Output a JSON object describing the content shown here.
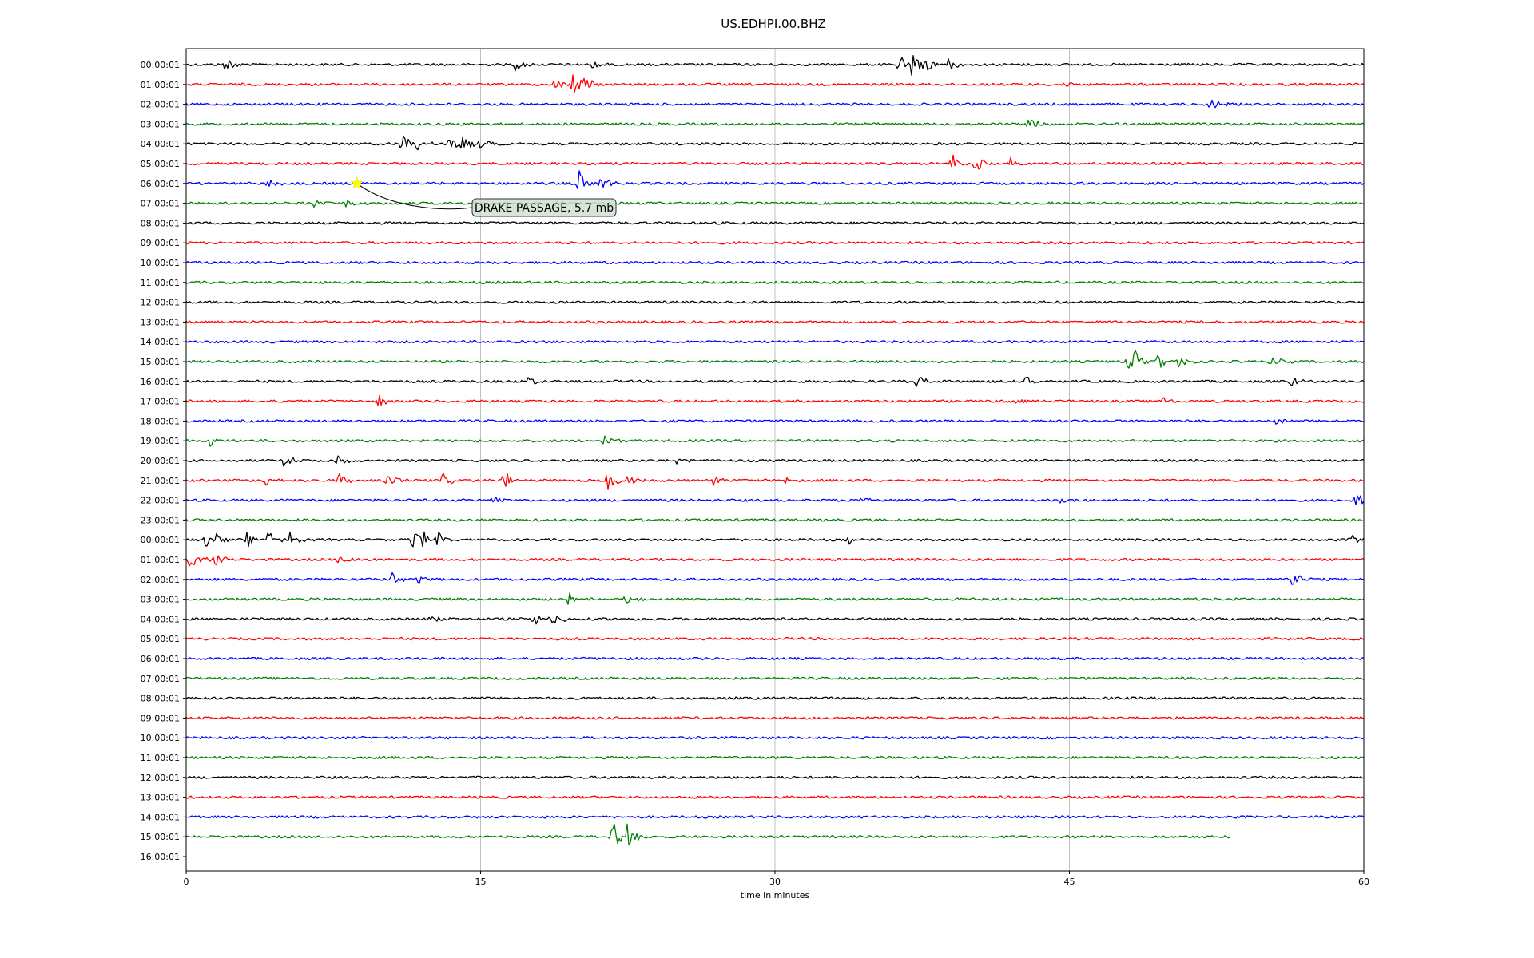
{
  "chart_data": {
    "type": "line",
    "title": "US.EDHPI.00.BHZ",
    "xlabel": "time in minutes",
    "ylabel": "",
    "xlim": [
      0,
      60
    ],
    "x_ticks": [
      "0",
      "15",
      "30",
      "45",
      "60"
    ],
    "x_tick_values": [
      0,
      15,
      30,
      45,
      60
    ],
    "grid": true,
    "colors": [
      "#000000",
      "#ff0000",
      "#0000ff",
      "#008000"
    ],
    "row_labels": [
      "00:00:01",
      "01:00:01",
      "02:00:01",
      "03:00:01",
      "04:00:01",
      "05:00:01",
      "06:00:01",
      "07:00:01",
      "08:00:01",
      "09:00:01",
      "10:00:01",
      "11:00:01",
      "12:00:01",
      "13:00:01",
      "14:00:01",
      "15:00:01",
      "16:00:01",
      "17:00:01",
      "18:00:01",
      "19:00:01",
      "20:00:01",
      "21:00:01",
      "22:00:01",
      "23:00:01",
      "00:00:01",
      "01:00:01",
      "02:00:01",
      "03:00:01",
      "04:00:01",
      "05:00:01",
      "06:00:01",
      "07:00:01",
      "08:00:01",
      "09:00:01",
      "10:00:01",
      "11:00:01",
      "12:00:01",
      "13:00:01",
      "14:00:01",
      "15:00:01",
      "16:00:01"
    ],
    "traces_drawn": 40,
    "last_trace_end_minute": 53.2,
    "events": [
      {
        "row": 0,
        "minute": 2.0,
        "amp": 0.45
      },
      {
        "row": 0,
        "minute": 16.8,
        "amp": 0.4
      },
      {
        "row": 0,
        "minute": 20.6,
        "amp": 0.3
      },
      {
        "row": 0,
        "minute": 36.3,
        "amp": 0.7
      },
      {
        "row": 0,
        "minute": 37.0,
        "amp": 0.9
      },
      {
        "row": 0,
        "minute": 37.6,
        "amp": 0.6
      },
      {
        "row": 0,
        "minute": 38.8,
        "amp": 0.4
      },
      {
        "row": 1,
        "minute": 18.8,
        "amp": 0.4
      },
      {
        "row": 1,
        "minute": 19.7,
        "amp": 0.8
      },
      {
        "row": 1,
        "minute": 20.2,
        "amp": 0.5
      },
      {
        "row": 1,
        "minute": 44.5,
        "amp": 0.25
      },
      {
        "row": 2,
        "minute": 52.2,
        "amp": 0.55
      },
      {
        "row": 3,
        "minute": 42.9,
        "amp": 0.9
      },
      {
        "row": 4,
        "minute": 11.0,
        "amp": 0.8
      },
      {
        "row": 4,
        "minute": 11.8,
        "amp": 0.4
      },
      {
        "row": 4,
        "minute": 13.4,
        "amp": 0.5
      },
      {
        "row": 4,
        "minute": 14.1,
        "amp": 0.55
      },
      {
        "row": 4,
        "minute": 15.0,
        "amp": 0.4
      },
      {
        "row": 5,
        "minute": 39.0,
        "amp": 0.6
      },
      {
        "row": 5,
        "minute": 40.2,
        "amp": 0.5
      },
      {
        "row": 5,
        "minute": 42.0,
        "amp": 0.35
      },
      {
        "row": 6,
        "minute": 4.2,
        "amp": 0.3
      },
      {
        "row": 6,
        "minute": 20.0,
        "amp": 0.75
      },
      {
        "row": 6,
        "minute": 21.1,
        "amp": 0.6
      },
      {
        "row": 7,
        "minute": 6.5,
        "amp": 0.3
      },
      {
        "row": 7,
        "minute": 8.2,
        "amp": 0.45
      },
      {
        "row": 7,
        "minute": 18.6,
        "amp": 0.35
      },
      {
        "row": 15,
        "minute": 48.0,
        "amp": 0.6
      },
      {
        "row": 15,
        "minute": 48.3,
        "amp": 0.8
      },
      {
        "row": 15,
        "minute": 49.5,
        "amp": 0.5
      },
      {
        "row": 15,
        "minute": 50.6,
        "amp": 0.4
      },
      {
        "row": 15,
        "minute": 55.3,
        "amp": 0.4
      },
      {
        "row": 16,
        "minute": 17.4,
        "amp": 0.3
      },
      {
        "row": 16,
        "minute": 37.2,
        "amp": 0.45
      },
      {
        "row": 16,
        "minute": 42.8,
        "amp": 0.55
      },
      {
        "row": 16,
        "minute": 56.3,
        "amp": 0.3
      },
      {
        "row": 17,
        "minute": 9.8,
        "amp": 0.4
      },
      {
        "row": 17,
        "minute": 41.9,
        "amp": 0.25
      },
      {
        "row": 17,
        "minute": 49.8,
        "amp": 0.3
      },
      {
        "row": 18,
        "minute": 55.6,
        "amp": 0.35
      },
      {
        "row": 19,
        "minute": 1.2,
        "amp": 0.3
      },
      {
        "row": 19,
        "minute": 21.3,
        "amp": 0.4
      },
      {
        "row": 20,
        "minute": 5.0,
        "amp": 0.4
      },
      {
        "row": 20,
        "minute": 7.7,
        "amp": 0.3
      },
      {
        "row": 20,
        "minute": 25.0,
        "amp": 0.2
      },
      {
        "row": 21,
        "minute": 4.0,
        "amp": 0.4
      },
      {
        "row": 21,
        "minute": 7.8,
        "amp": 0.65
      },
      {
        "row": 21,
        "minute": 10.2,
        "amp": 0.4
      },
      {
        "row": 21,
        "minute": 13.1,
        "amp": 0.4
      },
      {
        "row": 21,
        "minute": 16.2,
        "amp": 0.55
      },
      {
        "row": 21,
        "minute": 21.5,
        "amp": 0.65
      },
      {
        "row": 21,
        "minute": 22.4,
        "amp": 0.4
      },
      {
        "row": 21,
        "minute": 26.9,
        "amp": 0.3
      },
      {
        "row": 21,
        "minute": 30.4,
        "amp": 0.3
      },
      {
        "row": 22,
        "minute": 15.6,
        "amp": 0.3
      },
      {
        "row": 22,
        "minute": 34.0,
        "amp": 0.4
      },
      {
        "row": 22,
        "minute": 44.6,
        "amp": 0.25
      },
      {
        "row": 22,
        "minute": 59.6,
        "amp": 0.55
      },
      {
        "row": 24,
        "minute": 1.0,
        "amp": 0.4
      },
      {
        "row": 24,
        "minute": 1.5,
        "amp": 0.45
      },
      {
        "row": 24,
        "minute": 3.1,
        "amp": 0.45
      },
      {
        "row": 24,
        "minute": 4.2,
        "amp": 0.55
      },
      {
        "row": 24,
        "minute": 5.3,
        "amp": 0.55
      },
      {
        "row": 24,
        "minute": 11.5,
        "amp": 0.75
      },
      {
        "row": 24,
        "minute": 12.0,
        "amp": 0.6
      },
      {
        "row": 24,
        "minute": 12.8,
        "amp": 0.5
      },
      {
        "row": 24,
        "minute": 33.8,
        "amp": 0.25
      },
      {
        "row": 24,
        "minute": 59.4,
        "amp": 0.35
      },
      {
        "row": 25,
        "minute": 0.2,
        "amp": 0.65
      },
      {
        "row": 25,
        "minute": 1.5,
        "amp": 0.4
      },
      {
        "row": 25,
        "minute": 7.8,
        "amp": 0.5
      },
      {
        "row": 26,
        "minute": 10.5,
        "amp": 0.55
      },
      {
        "row": 26,
        "minute": 11.8,
        "amp": 0.3
      },
      {
        "row": 26,
        "minute": 56.4,
        "amp": 0.6
      },
      {
        "row": 27,
        "minute": 19.5,
        "amp": 0.35
      },
      {
        "row": 27,
        "minute": 22.4,
        "amp": 0.25
      },
      {
        "row": 28,
        "minute": 12.5,
        "amp": 0.35
      },
      {
        "row": 28,
        "minute": 17.7,
        "amp": 0.45
      },
      {
        "row": 28,
        "minute": 18.7,
        "amp": 0.45
      },
      {
        "row": 39,
        "minute": 21.7,
        "amp": 0.95
      },
      {
        "row": 39,
        "minute": 22.4,
        "amp": 0.9
      }
    ],
    "annotations": [
      {
        "text": "DRAKE PASSAGE, 5.7 mb",
        "row": 6,
        "minute": 8.7,
        "marker": "star",
        "marker_color": "#ffff00"
      }
    ]
  }
}
